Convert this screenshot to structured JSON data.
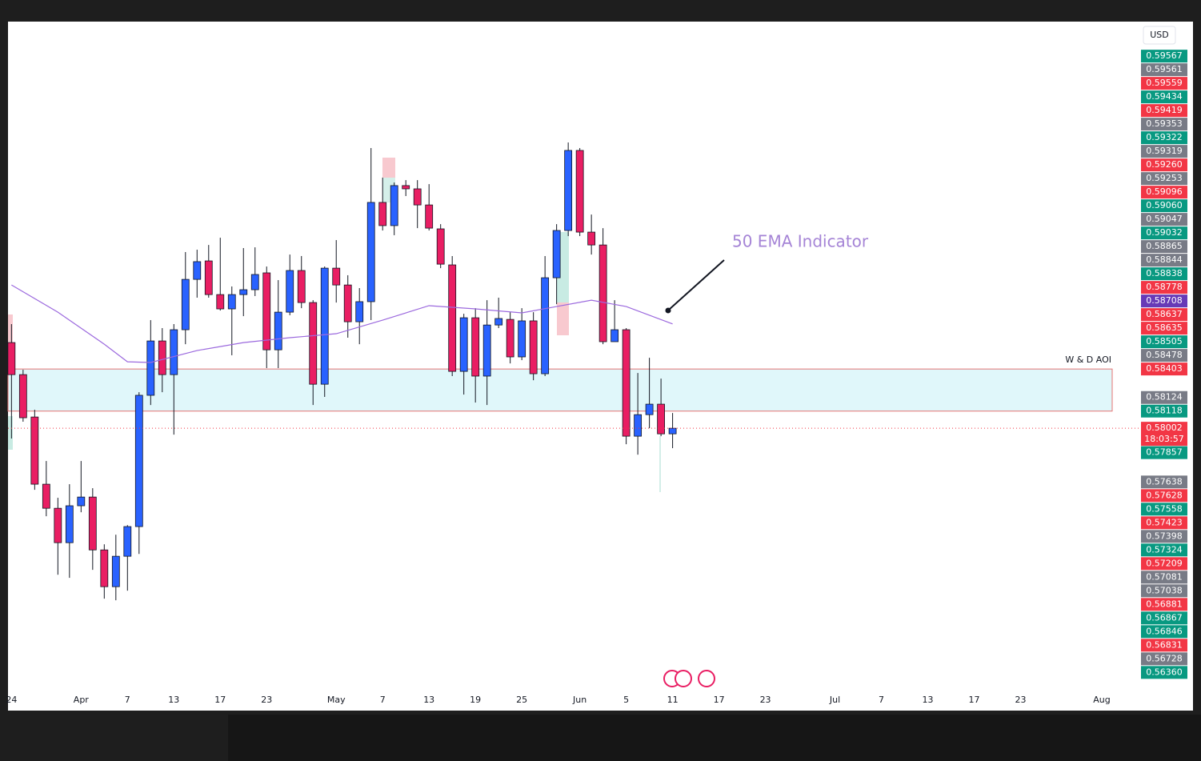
{
  "chart_data": {
    "type": "candlestick",
    "currency": "USD",
    "x": [
      0,
      1,
      2,
      3,
      4,
      5,
      6,
      7,
      8,
      9,
      10,
      11,
      12,
      13,
      14,
      15,
      16,
      17,
      18,
      19,
      20,
      21,
      22,
      23,
      24,
      25,
      26,
      27,
      28,
      29,
      30,
      31,
      32,
      33,
      34,
      35,
      36,
      37,
      38,
      39,
      40,
      41,
      42,
      43,
      44,
      45,
      46,
      47,
      48,
      49,
      50,
      51,
      52,
      53,
      54,
      55,
      56,
      57
    ],
    "open": [
      0.58582,
      0.58365,
      0.58078,
      0.57623,
      0.5746,
      0.57227,
      0.57477,
      0.57536,
      0.57178,
      0.56929,
      0.57135,
      0.57336,
      0.58225,
      0.58593,
      0.58365,
      0.58669,
      0.5901,
      0.59135,
      0.58907,
      0.5881,
      0.58907,
      0.5894,
      0.59054,
      0.58533,
      0.58788,
      0.5907,
      0.58853,
      0.583,
      0.59086,
      0.58972,
      0.58723,
      0.58859,
      0.59531,
      0.59374,
      0.59645,
      0.59623,
      0.59514,
      0.59352,
      0.59108,
      0.58387,
      0.5875,
      0.58355,
      0.58701,
      0.58739,
      0.58485,
      0.58729,
      0.58371,
      0.59021,
      0.59341,
      0.59883,
      0.5933,
      0.59243,
      0.58588,
      0.58669,
      0.57948,
      0.58094,
      0.58165,
      0.57964
    ],
    "high": [
      0.58707,
      0.58398,
      0.58127,
      0.5778,
      0.57531,
      0.57623,
      0.5778,
      0.57596,
      0.57216,
      0.57281,
      0.57346,
      0.58246,
      0.58734,
      0.5868,
      0.58707,
      0.59195,
      0.59211,
      0.59243,
      0.59292,
      0.58962,
      0.59222,
      0.59227,
      0.59097,
      0.59005,
      0.59178,
      0.59168,
      0.58869,
      0.59097,
      0.59276,
      0.59038,
      0.58951,
      0.59899,
      0.59699,
      0.59666,
      0.59682,
      0.59682,
      0.59655,
      0.59384,
      0.59168,
      0.58777,
      0.58815,
      0.58869,
      0.58886,
      0.58788,
      0.58815,
      0.58788,
      0.59168,
      0.59384,
      0.59937,
      0.59899,
      0.59449,
      0.59357,
      0.58869,
      0.5868,
      0.58376,
      0.58479,
      0.58338,
      0.58105
    ],
    "low": [
      0.57932,
      0.58046,
      0.57585,
      0.57406,
      0.5701,
      0.56989,
      0.57433,
      0.57043,
      0.56848,
      0.56837,
      0.56902,
      0.57151,
      0.58159,
      0.58246,
      0.57959,
      0.58571,
      0.58886,
      0.58886,
      0.58799,
      0.58496,
      0.58761,
      0.58897,
      0.58409,
      0.58409,
      0.58767,
      0.58815,
      0.58159,
      0.58214,
      0.58853,
      0.58615,
      0.58571,
      0.58734,
      0.59341,
      0.59309,
      0.59574,
      0.59357,
      0.59341,
      0.59086,
      0.58355,
      0.5823,
      0.58176,
      0.58159,
      0.5868,
      0.58441,
      0.58463,
      0.58327,
      0.58355,
      0.58842,
      0.59303,
      0.59303,
      0.59178,
      0.58571,
      0.58588,
      0.57894,
      0.57823,
      0.58002,
      0.57948,
      0.57867
    ],
    "close": [
      0.58365,
      0.58073,
      0.57623,
      0.5746,
      0.57227,
      0.57477,
      0.57536,
      0.57178,
      0.56929,
      0.57135,
      0.57336,
      0.58225,
      0.58593,
      0.58365,
      0.58669,
      0.5901,
      0.5913,
      0.58907,
      0.5881,
      0.58907,
      0.5894,
      0.59043,
      0.58533,
      0.58788,
      0.5907,
      0.58853,
      0.583,
      0.59086,
      0.58972,
      0.58723,
      0.58859,
      0.59531,
      0.59374,
      0.59645,
      0.59623,
      0.59514,
      0.59357,
      0.59113,
      0.58387,
      0.5875,
      0.58355,
      0.58701,
      0.58745,
      0.58485,
      0.58729,
      0.58371,
      0.59021,
      0.59341,
      0.59883,
      0.5933,
      0.59243,
      0.58588,
      0.58669,
      0.57948,
      0.58094,
      0.58165,
      0.57964,
      0.58002
    ],
    "up_color": "#2962ff",
    "down_color": "#e91e63",
    "wick_color": "#131722",
    "xlim": [
      -0.3,
      94.9
    ],
    "ylim": [
      0.5609,
      0.6075
    ],
    "xticks": [
      {
        "value": 0,
        "label": "24"
      },
      {
        "value": 6,
        "label": "Apr"
      },
      {
        "value": 10,
        "label": "7"
      },
      {
        "value": 14,
        "label": "13"
      },
      {
        "value": 18,
        "label": "17"
      },
      {
        "value": 22,
        "label": "23"
      },
      {
        "value": 28,
        "label": "May"
      },
      {
        "value": 32,
        "label": "7"
      },
      {
        "value": 36,
        "label": "13"
      },
      {
        "value": 40,
        "label": "19"
      },
      {
        "value": 44,
        "label": "25"
      },
      {
        "value": 49,
        "label": "Jun"
      },
      {
        "value": 53,
        "label": "5"
      },
      {
        "value": 57,
        "label": "11"
      },
      {
        "value": 61,
        "label": "17"
      },
      {
        "value": 65,
        "label": "23"
      },
      {
        "value": 71,
        "label": "Jul"
      },
      {
        "value": 75,
        "label": "7"
      },
      {
        "value": 79,
        "label": "13"
      },
      {
        "value": 83,
        "label": "17"
      },
      {
        "value": 87,
        "label": "23"
      },
      {
        "value": 94,
        "label": "Aug"
      }
    ],
    "ema": {
      "color": "#9c6ade",
      "x": [
        0,
        4,
        8,
        10,
        12,
        16,
        20,
        24,
        28,
        32,
        36,
        40,
        44,
        47,
        50,
        53,
        57
      ],
      "values": [
        0.58972,
        0.58788,
        0.58571,
        0.58452,
        0.58447,
        0.58528,
        0.58582,
        0.58615,
        0.58642,
        0.58734,
        0.58832,
        0.5881,
        0.58783,
        0.58826,
        0.58869,
        0.58826,
        0.58708
      ]
    },
    "zone": {
      "label": "W & D AOI",
      "top": 0.58403,
      "bottom": 0.58118,
      "fill": "#e0f7fa",
      "border": "#e57373"
    },
    "annotation": {
      "text": "50 EMA Indicator",
      "color": "#a584d6"
    },
    "price_labels": [
      {
        "value": 0.59567,
        "label": "0.59567",
        "color": "#089981"
      },
      {
        "value": 0.59561,
        "label": "0.59561",
        "color": "#787b86"
      },
      {
        "value": 0.59559,
        "label": "0.59559",
        "color": "#f23645"
      },
      {
        "value": 0.59434,
        "label": "0.59434",
        "color": "#089981"
      },
      {
        "value": 0.59419,
        "label": "0.59419",
        "color": "#f23645"
      },
      {
        "value": 0.59353,
        "label": "0.59353",
        "color": "#787b86"
      },
      {
        "value": 0.59322,
        "label": "0.59322",
        "color": "#089981"
      },
      {
        "value": 0.59319,
        "label": "0.59319",
        "color": "#787b86"
      },
      {
        "value": 0.5926,
        "label": "0.59260",
        "color": "#f23645"
      },
      {
        "value": 0.59253,
        "label": "0.59253",
        "color": "#787b86"
      },
      {
        "value": 0.59096,
        "label": "0.59096",
        "color": "#f23645"
      },
      {
        "value": 0.5906,
        "label": "0.59060",
        "color": "#089981"
      },
      {
        "value": 0.59047,
        "label": "0.59047",
        "color": "#787b86"
      },
      {
        "value": 0.59032,
        "label": "0.59032",
        "color": "#089981"
      },
      {
        "value": 0.58865,
        "label": "0.58865",
        "color": "#787b86"
      },
      {
        "value": 0.58844,
        "label": "0.58844",
        "color": "#787b86"
      },
      {
        "value": 0.58838,
        "label": "0.58838",
        "color": "#089981"
      },
      {
        "value": 0.58778,
        "label": "0.58778",
        "color": "#f23645"
      },
      {
        "value": 0.58708,
        "label": "0.58708",
        "color": "#673ab7"
      },
      {
        "value": 0.58637,
        "label": "0.58637",
        "color": "#f23645"
      },
      {
        "value": 0.58635,
        "label": "0.58635",
        "color": "#f23645"
      },
      {
        "value": 0.58505,
        "label": "0.58505",
        "color": "#089981"
      },
      {
        "value": 0.58478,
        "label": "0.58478",
        "color": "#787b86"
      },
      {
        "value": 0.58403,
        "label": "0.58403",
        "color": "#f23645"
      },
      {
        "value": 0.58124,
        "label": "0.58124",
        "color": "#787b86"
      },
      {
        "value": 0.58118,
        "label": "0.58118",
        "color": "#089981"
      },
      {
        "value": 0.58002,
        "label": "0.58002",
        "color": "#f23645",
        "countdown": "18:03:57"
      },
      {
        "value": 0.57857,
        "label": "0.57857",
        "color": "#089981"
      },
      {
        "value": 0.57638,
        "label": "0.57638",
        "color": "#787b86"
      },
      {
        "value": 0.57628,
        "label": "0.57628",
        "color": "#f23645"
      },
      {
        "value": 0.57558,
        "label": "0.57558",
        "color": "#089981"
      },
      {
        "value": 0.57423,
        "label": "0.57423",
        "color": "#f23645"
      },
      {
        "value": 0.57398,
        "label": "0.57398",
        "color": "#787b86"
      },
      {
        "value": 0.57324,
        "label": "0.57324",
        "color": "#089981"
      },
      {
        "value": 0.57209,
        "label": "0.57209",
        "color": "#f23645"
      },
      {
        "value": 0.57081,
        "label": "0.57081",
        "color": "#787b86"
      },
      {
        "value": 0.57038,
        "label": "0.57038",
        "color": "#787b86"
      },
      {
        "value": 0.56881,
        "label": "0.56881",
        "color": "#f23645"
      },
      {
        "value": 0.56867,
        "label": "0.56867",
        "color": "#089981"
      },
      {
        "value": 0.56846,
        "label": "0.56846",
        "color": "#089981"
      },
      {
        "value": 0.56831,
        "label": "0.56831",
        "color": "#f23645"
      },
      {
        "value": 0.56728,
        "label": "0.56728",
        "color": "#787b86"
      },
      {
        "value": 0.5636,
        "label": "0.56360",
        "color": "#089981"
      }
    ]
  }
}
